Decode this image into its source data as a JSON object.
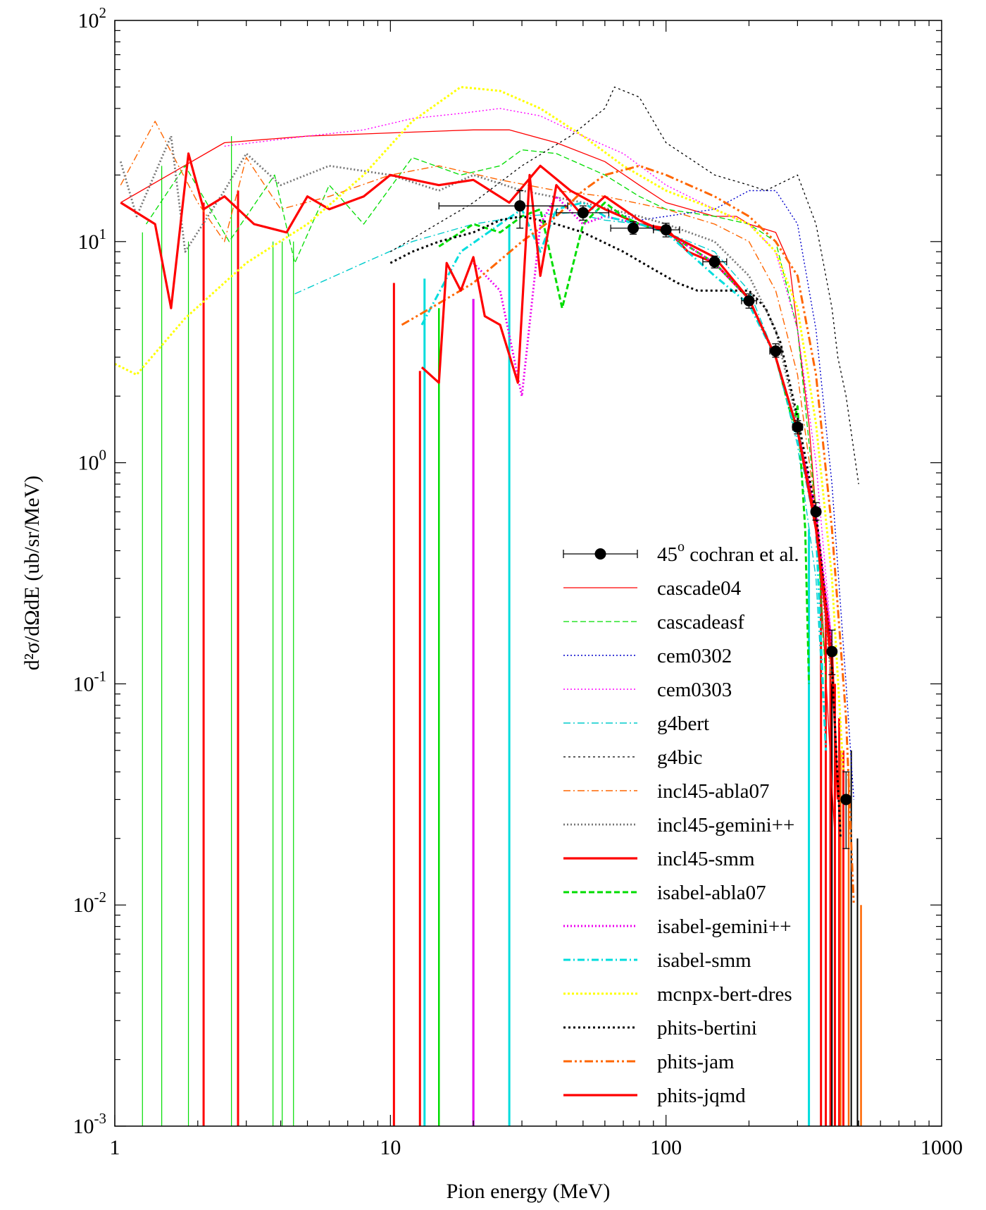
{
  "chart_data": {
    "type": "line",
    "title": "",
    "xlabel": "Pion energy (MeV)",
    "ylabel": "d²σ/dΩdE (ub/sr/MeV)",
    "xscale": "log",
    "yscale": "log",
    "xlim": [
      1,
      1000
    ],
    "ylim": [
      0.001,
      100
    ],
    "x_tick_labels": [
      "1",
      "10",
      "100",
      "1000"
    ],
    "y_tick_labels": [
      {
        "base": "10",
        "exp": "-3"
      },
      {
        "base": "10",
        "exp": "-2"
      },
      {
        "base": "10",
        "exp": "-1"
      },
      {
        "base": "10",
        "exp": "0"
      },
      {
        "base": "10",
        "exp": "1"
      },
      {
        "base": "10",
        "exp": "2"
      }
    ],
    "grid": false,
    "legend_position": "bottom-right",
    "experiment": {
      "label_base": "45",
      "label_sup": "o",
      "label_rest": " cochran et al.",
      "color": "#000000",
      "points": [
        {
          "x": 29.5,
          "y": 14.5,
          "xerr": [
            15,
            44
          ],
          "yerr": [
            11.5,
            17
          ]
        },
        {
          "x": 50,
          "y": 13.5,
          "xerr": [
            40,
            62
          ],
          "yerr": [
            12.5,
            14.5
          ]
        },
        {
          "x": 76,
          "y": 11.5,
          "xerr": [
            63,
            90
          ],
          "yerr": [
            10.8,
            12.3
          ]
        },
        {
          "x": 100,
          "y": 11.3,
          "xerr": [
            90,
            112
          ],
          "yerr": [
            10.5,
            12.1
          ]
        },
        {
          "x": 150,
          "y": 8.1,
          "xerr": [
            136,
            166
          ],
          "yerr": [
            7.6,
            8.6
          ]
        },
        {
          "x": 200,
          "y": 5.4,
          "xerr": [
            188,
            213
          ],
          "yerr": [
            5.0,
            5.8
          ]
        },
        {
          "x": 250,
          "y": 3.2,
          "xerr": [
            238,
            263
          ],
          "yerr": [
            3.0,
            3.45
          ]
        },
        {
          "x": 300,
          "y": 1.45,
          "xerr": [
            288,
            313
          ],
          "yerr": [
            1.35,
            1.55
          ]
        },
        {
          "x": 350,
          "y": 0.6,
          "xerr": [
            338,
            363
          ],
          "yerr": [
            0.55,
            0.66
          ]
        },
        {
          "x": 400,
          "y": 0.14,
          "xerr": [
            388,
            413
          ],
          "yerr": [
            0.11,
            0.175
          ]
        },
        {
          "x": 450,
          "y": 0.03,
          "xerr": [
            438,
            463
          ],
          "yerr": [
            0.018,
            0.04
          ]
        }
      ]
    },
    "series": [
      {
        "name": "cascade04",
        "color": "#ff0000",
        "width": 1.3,
        "dash": "",
        "x": [
          1.05,
          2.5,
          5,
          10,
          20,
          27,
          40,
          60,
          80,
          100,
          150,
          180,
          200,
          250,
          280,
          300,
          330,
          350,
          370,
          390,
          410
        ],
        "y": [
          15,
          28,
          30,
          31,
          32,
          32,
          28,
          23,
          18,
          15,
          13,
          13,
          12,
          11,
          8,
          4,
          1.5,
          0.6,
          0.2,
          0.06,
          0.02
        ]
      },
      {
        "name": "cascadeasf",
        "color": "#00dd00",
        "width": 1.3,
        "dash": "8,4",
        "x": [
          1.3,
          1.8,
          2.6,
          3.8,
          4.5,
          6,
          8,
          12,
          18,
          25,
          30,
          40,
          60,
          80,
          100,
          150,
          200,
          250,
          300,
          350,
          380
        ],
        "y": [
          12,
          22,
          10,
          20,
          8,
          18,
          12,
          24,
          20,
          22,
          26,
          25,
          20,
          16,
          14,
          13,
          12,
          10,
          4,
          0.6,
          0.1
        ]
      },
      {
        "name": "cem0302",
        "color": "#0000cc",
        "width": 1.4,
        "dash": "2,3",
        "x": [
          60,
          80,
          100,
          150,
          200,
          250,
          300,
          350,
          400,
          450,
          480
        ],
        "y": [
          14,
          12.5,
          13,
          14,
          17,
          17,
          12,
          4,
          0.8,
          0.1,
          0.03
        ]
      },
      {
        "name": "cem0303",
        "color": "#ff00ff",
        "width": 1.4,
        "dash": "2,3",
        "x": [
          2.5,
          5,
          8,
          12,
          18,
          25,
          35,
          50,
          70,
          100,
          150,
          200,
          250,
          300,
          350,
          400
        ],
        "y": [
          27,
          30,
          32,
          36,
          38,
          40,
          37,
          30,
          25,
          18,
          14,
          12,
          9,
          4,
          1,
          0.15
        ]
      },
      {
        "name": "g4bert",
        "color": "#00cccc",
        "width": 1.4,
        "dash": "10,4,2,4",
        "x": [
          4.5,
          8,
          12,
          20,
          30,
          45,
          60,
          80,
          100,
          150,
          200,
          250,
          300,
          350,
          380
        ],
        "y": [
          5.8,
          8,
          10,
          12,
          13,
          13.5,
          12.5,
          12,
          11,
          9,
          6,
          3,
          1.2,
          0.3,
          0.05
        ]
      },
      {
        "name": "g4bic",
        "color": "#000000",
        "width": 1.3,
        "dash": "3,4",
        "x": [
          10,
          20,
          30,
          45,
          60,
          65,
          80,
          100,
          150,
          200,
          230,
          300,
          350,
          400,
          420,
          450,
          500
        ],
        "y": [
          9,
          15,
          22,
          30,
          40,
          50,
          45,
          28,
          20,
          18,
          17,
          20,
          12,
          5,
          3,
          2,
          0.8
        ]
      },
      {
        "name": "incl45-abla07",
        "color": "#ff6600",
        "width": 1.4,
        "dash": "10,4,2,4",
        "x": [
          1.05,
          1.4,
          2,
          2.5,
          3,
          4,
          6,
          10,
          15,
          25,
          40,
          60,
          100,
          150,
          200,
          250,
          300,
          350,
          400
        ],
        "y": [
          18,
          35,
          15,
          10,
          24,
          14,
          16,
          20,
          22,
          19,
          17,
          16,
          14,
          12,
          10,
          6,
          2.5,
          0.6,
          0.1
        ]
      },
      {
        "name": "incl45-gemini++",
        "color": "#777777",
        "width": 2.8,
        "dash": "2,3",
        "x": [
          1.05,
          1.2,
          1.6,
          1.8,
          2.5,
          3,
          4,
          6,
          10,
          15,
          20,
          30,
          50,
          80,
          100,
          150,
          200,
          250,
          300,
          350,
          400
        ],
        "y": [
          23,
          13,
          30,
          9,
          17,
          25,
          18,
          22,
          20,
          17,
          20,
          17,
          15,
          13,
          12,
          10,
          7,
          4,
          1.5,
          0.5,
          0.1
        ]
      },
      {
        "name": "incl45-smm",
        "color": "#ff0000",
        "width": 3.2,
        "dash": "",
        "x": [
          1.05,
          1.4,
          1.6,
          1.85,
          2.1,
          2.5,
          3.2,
          4.2,
          5,
          6,
          8,
          10,
          15,
          20,
          27,
          35,
          45,
          60,
          80,
          100,
          120,
          150,
          200,
          250,
          300,
          350,
          400,
          420
        ],
        "y": [
          15,
          12,
          5,
          25,
          14,
          16,
          12,
          11,
          16,
          14,
          16,
          20,
          18,
          19,
          15,
          22,
          17,
          14,
          12,
          11.5,
          9,
          8,
          5.5,
          3,
          1.4,
          0.55,
          0.14,
          0.03
        ]
      },
      {
        "name": "isabel-abla07",
        "color": "#00dd00",
        "width": 3.0,
        "dash": "8,4",
        "x": [
          15,
          20,
          25,
          30,
          35,
          42,
          50,
          60,
          70,
          80,
          100,
          150,
          200,
          250,
          290,
          300,
          320,
          330
        ],
        "y": [
          9.5,
          12,
          11,
          13,
          14,
          5,
          12,
          15,
          13,
          12,
          11,
          8,
          5.5,
          3,
          1.5,
          1.8,
          0.5,
          0.1
        ]
      },
      {
        "name": "isabel-gemini++",
        "color": "#ee00ee",
        "width": 3.0,
        "dash": "2,3",
        "x": [
          20,
          25,
          30,
          35,
          40,
          50,
          60,
          80,
          100,
          150,
          200,
          250,
          300,
          350,
          400
        ],
        "y": [
          8,
          6,
          2,
          12,
          16,
          12,
          13,
          12,
          11,
          8,
          5.5,
          3,
          1.4,
          0.6,
          0.15
        ]
      },
      {
        "name": "isabel-smm",
        "color": "#00dddd",
        "width": 3.0,
        "dash": "10,4,2,4",
        "x": [
          13,
          18,
          25,
          30,
          35,
          40,
          50,
          60,
          80,
          100,
          150,
          200,
          250,
          300,
          350,
          380
        ],
        "y": [
          4.2,
          9,
          12,
          14,
          9,
          14,
          15,
          13,
          12,
          11,
          7,
          5.2,
          3,
          1.3,
          0.5,
          0.05
        ]
      },
      {
        "name": "mcnpx-bert-dres",
        "color": "#ffff00",
        "width": 3.0,
        "dash": "3,3",
        "x": [
          1.0,
          1.2,
          1.8,
          3,
          5,
          8,
          12,
          18,
          25,
          35,
          50,
          70,
          100,
          150,
          200,
          250,
          300,
          350,
          400,
          440
        ],
        "y": [
          2.8,
          2.5,
          4.5,
          8,
          12,
          20,
          35,
          50,
          48,
          40,
          30,
          22,
          17,
          14,
          12,
          9,
          5,
          1.5,
          0.3,
          0.04
        ]
      },
      {
        "name": "phits-bertini",
        "color": "#000000",
        "width": 3.0,
        "dash": "3,4",
        "x": [
          10,
          12,
          15,
          20,
          25,
          30,
          40,
          50,
          70,
          90,
          110,
          130,
          160,
          200,
          230,
          260,
          300,
          350,
          400,
          430
        ],
        "y": [
          8,
          9,
          10,
          11,
          12.5,
          13,
          12,
          11,
          9,
          7.5,
          6.5,
          6,
          6,
          6,
          5,
          3.5,
          1.6,
          0.6,
          0.12,
          0.02
        ]
      },
      {
        "name": "phits-jam",
        "color": "#ff6600",
        "width": 3.0,
        "dash": "12,4,3,4,3,4",
        "x": [
          11,
          14,
          20,
          30,
          40,
          50,
          60,
          80,
          100,
          150,
          200,
          250,
          300,
          350,
          400,
          450,
          480
        ],
        "y": [
          4.2,
          5,
          6.5,
          10,
          13,
          17,
          20,
          22,
          20,
          16,
          13,
          10,
          7,
          2.5,
          0.5,
          0.07,
          0.01
        ]
      },
      {
        "name": "phits-jqmd",
        "color": "#ff0000",
        "width": 3.2,
        "dash": "",
        "x": [
          13,
          15,
          16,
          18,
          20,
          22,
          25,
          29,
          32,
          35,
          40,
          50,
          60,
          80,
          100,
          150,
          200,
          250,
          300,
          350,
          400
        ],
        "y": [
          2.7,
          2.3,
          8,
          6,
          8.5,
          4.6,
          4.2,
          2.3,
          20,
          7,
          18,
          13,
          16,
          12.5,
          11,
          8.5,
          5.5,
          3,
          1.4,
          0.5,
          0.12
        ]
      }
    ],
    "spikes": [
      {
        "color": "#00dd00",
        "width": 1.2,
        "x": [
          1.26,
          1.48,
          1.85,
          2.65,
          3.75,
          4.05,
          4.45
        ],
        "y_top": [
          11,
          22,
          10,
          30,
          10,
          10,
          10
        ]
      },
      {
        "color": "#ff0000",
        "width": 3.0,
        "x": [
          2.1,
          2.8,
          10.3,
          12.8
        ],
        "y_top": [
          15,
          17,
          6.5,
          2.6
        ]
      },
      {
        "color": "#00dd00",
        "width": 2.5,
        "x": [
          15
        ],
        "y_top": [
          5
        ]
      },
      {
        "color": "#00dddd",
        "width": 3.0,
        "x": [
          13.3,
          20,
          27,
          330
        ],
        "y_top": [
          6.8,
          5.5,
          12,
          0.5
        ]
      },
      {
        "color": "#ee00ee",
        "width": 3.0,
        "x": [
          20
        ],
        "y_top": [
          5.5
        ]
      },
      {
        "color": "#ff0000",
        "width": 3.0,
        "x": [
          365,
          380,
          395,
          410,
          425,
          440
        ],
        "y_top": [
          0.3,
          0.2,
          0.12,
          0.1,
          0.07,
          0.05
        ]
      },
      {
        "color": "#000000",
        "width": 2.0,
        "x": [
          400,
          470,
          495
        ],
        "y_top": [
          0.1,
          0.05,
          0.02
        ]
      },
      {
        "color": "#ff6600",
        "width": 2.5,
        "x": [
          430,
          460,
          510
        ],
        "y_top": [
          0.05,
          0.04,
          0.01
        ]
      }
    ]
  }
}
